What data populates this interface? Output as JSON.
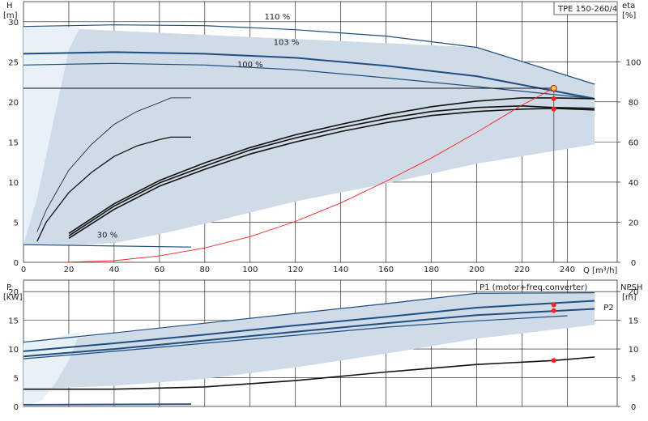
{
  "chart_data": [
    {
      "id": "top",
      "type": "line",
      "title": "TPE 150-260/4",
      "xlabel": "Q [m³/h]",
      "ylabel_left_unit": "H",
      "ylabel_left_bracket": "[m]",
      "ylabel_right_unit": "eta",
      "ylabel_right_bracket": "[%]",
      "xlim": [
        0,
        262
      ],
      "ylim": [
        0,
        32.5
      ],
      "ylim_right": [
        0,
        130
      ],
      "x_ticks": [
        "0",
        "20",
        "40",
        "60",
        "80",
        "100",
        "120",
        "140",
        "160",
        "180",
        "200",
        "220",
        "240"
      ],
      "y_ticks": [
        "0",
        "5",
        "10",
        "15",
        "20",
        "25",
        "30"
      ],
      "y_ticks_right": [
        "0",
        "20",
        "40",
        "60",
        "80",
        "100"
      ],
      "grid": true,
      "colors": {
        "fill": "#cfdbe7",
        "light_fill": "#e9f1f8",
        "curve": "#1f4e80",
        "system": "#ff2020",
        "duty": "#ff2020",
        "black": "#111111"
      },
      "curve_labels": [
        {
          "text": "110 %",
          "x": 112,
          "y": 30.3
        },
        {
          "text": "103 %",
          "x": 116,
          "y": 27.1
        },
        {
          "text": "100 %",
          "x": 100,
          "y": 24.3
        },
        {
          "text": "30 %",
          "x": 37,
          "y": 3.1
        }
      ],
      "envelope": {
        "x": [
          0,
          200,
          252,
          252,
          200,
          160,
          120,
          80,
          60,
          40,
          25,
          12,
          0
        ],
        "y": [
          29.4,
          26.8,
          22.2,
          14.7,
          12.3,
          9.8,
          7.6,
          4.8,
          3.5,
          2.4,
          2.2,
          2.2,
          2.2
        ]
      },
      "light_region": {
        "x": [
          0,
          25,
          20,
          12,
          6,
          0
        ],
        "y": [
          29.4,
          29.3,
          26.5,
          16,
          8,
          2.2
        ]
      },
      "series": [
        {
          "name": "H 110%",
          "x": [
            0,
            40,
            80,
            120,
            160,
            200,
            252
          ],
          "y": [
            29.4,
            29.6,
            29.5,
            29.0,
            28.2,
            26.8,
            22.2
          ]
        },
        {
          "name": "H 103%",
          "x": [
            0,
            40,
            80,
            120,
            160,
            200,
            252
          ],
          "y": [
            26.0,
            26.2,
            26.0,
            25.5,
            24.5,
            23.2,
            20.4
          ]
        },
        {
          "name": "H 100%",
          "x": [
            0,
            40,
            80,
            120,
            160,
            200,
            252
          ],
          "y": [
            24.6,
            24.8,
            24.6,
            24.0,
            23.0,
            21.9,
            20.4
          ]
        },
        {
          "name": "H 30%",
          "x": [
            0,
            74
          ],
          "y": [
            2.2,
            1.9
          ]
        },
        {
          "name": "H min1",
          "x": [
            6,
            10,
            20,
            30,
            40,
            50,
            60,
            65,
            74
          ],
          "y": [
            3.8,
            6.5,
            11.5,
            14.7,
            17.2,
            18.8,
            19.9,
            20.5,
            20.5
          ]
        },
        {
          "name": "H min2",
          "x": [
            6,
            10,
            20,
            30,
            40,
            50,
            60,
            65,
            74
          ],
          "y": [
            2.6,
            5,
            8.7,
            11.2,
            13.2,
            14.5,
            15.3,
            15.6,
            15.6
          ]
        },
        {
          "name": "eta 1",
          "x": [
            20,
            40,
            60,
            80,
            100,
            120,
            140,
            160,
            180,
            200,
            220,
            234,
            252
          ],
          "y": [
            3.6,
            7.3,
            10.2,
            12.4,
            14.3,
            15.9,
            17.2,
            18.4,
            19.4,
            20.1,
            20.5,
            20.5,
            20.4
          ]
        },
        {
          "name": "eta 2",
          "x": [
            20,
            40,
            60,
            80,
            100,
            120,
            140,
            160,
            180,
            200,
            220,
            234,
            252
          ],
          "y": [
            3.3,
            7.0,
            9.9,
            12.0,
            14.0,
            15.5,
            16.8,
            17.9,
            18.8,
            19.3,
            19.5,
            19.3,
            19.2
          ]
        },
        {
          "name": "eta 3",
          "x": [
            20,
            40,
            60,
            80,
            100,
            120,
            140,
            160,
            180,
            200,
            220,
            234,
            252
          ],
          "y": [
            3.0,
            6.6,
            9.5,
            11.6,
            13.5,
            15.0,
            16.3,
            17.4,
            18.3,
            18.8,
            19.1,
            19.2,
            19.0
          ]
        },
        {
          "name": "System curve",
          "x": [
            18,
            40,
            60,
            80,
            100,
            120,
            140,
            160,
            180,
            200,
            220,
            234
          ],
          "y": [
            0,
            0.2,
            0.8,
            1.8,
            3.2,
            5.1,
            7.4,
            10.1,
            13.0,
            16.2,
            19.6,
            21.7
          ]
        }
      ],
      "duty_points": [
        {
          "x": 234,
          "y": 21.7,
          "type": "duty"
        },
        {
          "x": 234,
          "y": 20.4,
          "type": "red"
        },
        {
          "x": 234,
          "y": 19.1,
          "type": "red"
        }
      ],
      "reference_lines": {
        "h": 21.7,
        "v": 234
      }
    },
    {
      "id": "bottom",
      "type": "line",
      "xlabel": "",
      "ylabel_left_unit": "P",
      "ylabel_left_bracket": "[kW]",
      "ylabel_right_unit": "NPSH",
      "ylabel_right_bracket": "[m]",
      "xlim": [
        0,
        262
      ],
      "ylim": [
        0,
        22
      ],
      "ylim_right": [
        0,
        22
      ],
      "y_ticks": [
        "0",
        "5",
        "10",
        "15",
        "20"
      ],
      "y_ticks_right": [
        "0",
        "5",
        "10",
        "15",
        "20"
      ],
      "grid": true,
      "curve_labels": [
        {
          "text": "P1 (motor+freq.converter)",
          "x": 237,
          "y": 20.3
        },
        {
          "text": "P2",
          "x": 256,
          "y": 16.8
        }
      ],
      "envelope": {
        "x": [
          0,
          200,
          252,
          252,
          200,
          160,
          120,
          80,
          40,
          0
        ],
        "y": [
          10.9,
          19.8,
          19.8,
          14.2,
          11.8,
          9.2,
          6.8,
          4.8,
          3.6,
          3.0
        ]
      },
      "light_region": {
        "x": [
          0,
          25,
          20,
          14,
          8,
          0
        ],
        "y": [
          10.9,
          13.0,
          8,
          4,
          1,
          0
        ]
      },
      "series": [
        {
          "name": "P1 110%",
          "x": [
            0,
            40,
            80,
            120,
            160,
            200,
            252
          ],
          "y": [
            11.2,
            12.8,
            14.5,
            16.2,
            17.9,
            19.7,
            19.8
          ]
        },
        {
          "name": "P1",
          "x": [
            0,
            40,
            80,
            120,
            160,
            200,
            252
          ],
          "y": [
            9.6,
            11.0,
            12.5,
            14.1,
            15.6,
            17.2,
            18.4
          ]
        },
        {
          "name": "P2",
          "x": [
            0,
            40,
            80,
            120,
            160,
            200,
            252
          ],
          "y": [
            8.7,
            10.0,
            11.5,
            13.0,
            14.5,
            15.9,
            17.0
          ]
        },
        {
          "name": "P thin",
          "x": [
            0,
            40,
            80,
            120,
            160,
            200,
            240
          ],
          "y": [
            8.3,
            9.6,
            11.0,
            12.4,
            13.8,
            14.9,
            15.8
          ]
        },
        {
          "name": "NPSH",
          "x": [
            0,
            40,
            80,
            120,
            160,
            200,
            234,
            252
          ],
          "y": [
            3.0,
            3.0,
            3.4,
            4.5,
            6.0,
            7.3,
            8.0,
            8.6
          ]
        },
        {
          "name": "NPSH min",
          "x": [
            0,
            74
          ],
          "y": [
            0.3,
            0.4
          ]
        }
      ],
      "duty_points": [
        {
          "x": 234,
          "y": 17.7,
          "type": "red"
        },
        {
          "x": 234,
          "y": 16.7,
          "type": "red"
        },
        {
          "x": 234,
          "y": 8.0,
          "type": "red"
        }
      ]
    }
  ]
}
